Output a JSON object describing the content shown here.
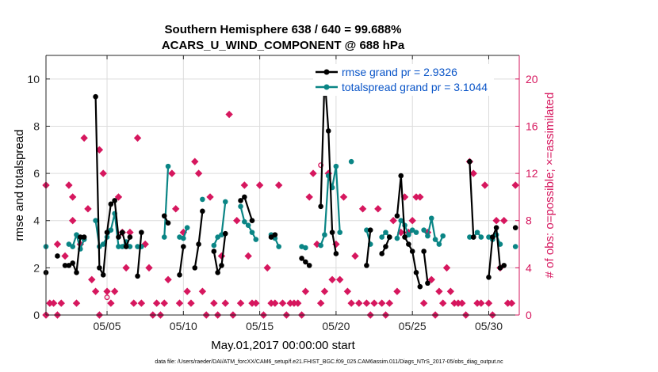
{
  "chart_data": {
    "type": "line",
    "title": "Southern Hemisphere 638 / 640 = 99.688%",
    "subtitle": "ACARS_U_WIND_COMPONENT @ 688 hPa",
    "xlabel": "May.01,2017 00:00:00 start",
    "ylabel_left": "rmse and totalspread",
    "ylabel_right": "# of obs: o=possible; ×=assimilated",
    "xlim": [
      1,
      32
    ],
    "ylim_left": [
      0,
      11
    ],
    "ylim_right": [
      0,
      22
    ],
    "x_ticks": [
      5,
      10,
      15,
      20,
      25,
      30
    ],
    "x_tick_labels": [
      "05/05",
      "05/10",
      "05/15",
      "05/20",
      "05/25",
      "05/30"
    ],
    "y_ticks_left": [
      0,
      2,
      4,
      6,
      8,
      10
    ],
    "y_ticks_right": [
      0,
      4,
      8,
      12,
      16,
      20
    ],
    "grid": true,
    "legend_position": "top-right",
    "colors": {
      "rmse": "#000000",
      "totalspread": "#0a8585",
      "obs": "#d6175e",
      "legend_text": "#0a55c8",
      "right_axis": "#d6175e"
    },
    "series": [
      {
        "name": "rmse grand pr = 2.9326",
        "axis": "left",
        "segments": [
          [
            [
              1.0,
              1.8
            ]
          ],
          [
            [
              1.75,
              2.5
            ]
          ],
          [
            [
              2.25,
              2.1
            ],
            [
              2.5,
              2.1
            ],
            [
              2.75,
              2.2
            ],
            [
              3.0,
              1.8
            ],
            [
              3.25,
              3.3
            ],
            [
              3.5,
              3.3
            ]
          ],
          [
            [
              4.25,
              9.25
            ],
            [
              4.5,
              2.0
            ],
            [
              4.75,
              1.7
            ],
            [
              5.0,
              3.5
            ],
            [
              5.25,
              4.7
            ],
            [
              5.5,
              4.85
            ],
            [
              5.75,
              3.3
            ],
            [
              6.0,
              3.5
            ],
            [
              6.25,
              2.9
            ],
            [
              6.5,
              3.3
            ]
          ],
          [
            [
              7.0,
              1.65
            ],
            [
              7.25,
              3.5
            ]
          ],
          [
            [
              8.75,
              4.2
            ],
            [
              9.0,
              3.9
            ]
          ],
          [
            [
              9.75,
              1.7
            ],
            [
              10.0,
              2.9
            ]
          ],
          [
            [
              10.75,
              2.0
            ],
            [
              11.0,
              3.0
            ],
            [
              11.25,
              4.4
            ]
          ],
          [
            [
              12.0,
              2.7
            ],
            [
              12.25,
              1.8
            ],
            [
              12.5,
              2.1
            ],
            [
              12.75,
              3.45
            ]
          ],
          [
            [
              13.75,
              4.85
            ],
            [
              14.0,
              5.0
            ],
            [
              14.5,
              4.0
            ]
          ],
          [
            [
              15.75,
              3.3
            ],
            [
              16.0,
              3.4
            ]
          ],
          [
            [
              17.75,
              2.4
            ],
            [
              18.0,
              2.25
            ],
            [
              18.25,
              2.1
            ]
          ],
          [
            [
              19.0,
              4.6
            ],
            [
              19.25,
              10.1
            ],
            [
              19.5,
              7.8
            ],
            [
              19.75,
              3.5
            ],
            [
              20.0,
              2.6
            ]
          ],
          [
            [
              22.0,
              2.1
            ],
            [
              22.25,
              3.6
            ]
          ],
          [
            [
              23.0,
              2.6
            ],
            [
              23.25,
              2.9
            ],
            [
              23.5,
              3.3
            ]
          ],
          [
            [
              24.0,
              4.2
            ],
            [
              24.25,
              5.9
            ],
            [
              24.5,
              3.3
            ],
            [
              24.75,
              3.0
            ],
            [
              25.0,
              2.7
            ],
            [
              25.25,
              1.8
            ],
            [
              25.5,
              1.2
            ]
          ],
          [
            [
              25.75,
              2.7
            ],
            [
              26.0,
              1.35
            ]
          ],
          [
            [
              28.75,
              6.5
            ],
            [
              29.0,
              3.3
            ]
          ],
          [
            [
              30.0,
              1.6
            ],
            [
              30.25,
              3.3
            ],
            [
              30.5,
              3.7
            ],
            [
              30.75,
              2.0
            ],
            [
              31.0,
              2.1
            ]
          ],
          [
            [
              31.75,
              3.7
            ]
          ]
        ]
      },
      {
        "name": "totalspread grand pr = 3.1044",
        "axis": "left",
        "segments": [
          [
            [
              1.0,
              2.9
            ]
          ],
          [
            [
              2.5,
              3.0
            ],
            [
              2.75,
              2.9
            ],
            [
              3.0,
              3.4
            ],
            [
              3.25,
              2.8
            ],
            [
              3.5,
              3.2
            ]
          ],
          [
            [
              4.25,
              4.0
            ],
            [
              4.5,
              2.9
            ],
            [
              4.75,
              3.0
            ],
            [
              5.0,
              3.3
            ],
            [
              5.25,
              3.6
            ],
            [
              5.5,
              4.3
            ],
            [
              5.75,
              2.9
            ],
            [
              6.0,
              2.9
            ],
            [
              6.25,
              3.1
            ],
            [
              6.5,
              2.9
            ]
          ],
          [
            [
              7.0,
              2.9
            ],
            [
              7.25,
              2.9
            ]
          ],
          [
            [
              8.75,
              3.3
            ],
            [
              9.0,
              6.3
            ]
          ],
          [
            [
              9.75,
              3.3
            ],
            [
              10.0,
              3.25
            ],
            [
              10.25,
              3.7
            ]
          ],
          [
            [
              11.25,
              4.9
            ]
          ],
          [
            [
              12.0,
              2.95
            ],
            [
              12.25,
              3.3
            ],
            [
              12.5,
              3.4
            ],
            [
              12.75,
              4.8
            ]
          ],
          [
            [
              13.75,
              4.6
            ],
            [
              14.0,
              3.95
            ],
            [
              14.25,
              3.8
            ],
            [
              14.5,
              3.5
            ],
            [
              14.75,
              3.2
            ]
          ],
          [
            [
              15.75,
              3.4
            ],
            [
              16.0,
              3.25
            ],
            [
              16.25,
              2.9
            ]
          ],
          [
            [
              17.75,
              2.9
            ],
            [
              18.0,
              2.85
            ]
          ],
          [
            [
              19.0,
              2.95
            ],
            [
              19.25,
              3.4
            ],
            [
              19.5,
              5.9
            ],
            [
              19.75,
              5.4
            ],
            [
              20.0,
              6.3
            ],
            [
              20.25,
              3.5
            ]
          ],
          [
            [
              21.0,
              6.5
            ]
          ],
          [
            [
              22.0,
              3.6
            ],
            [
              22.25,
              3.0
            ]
          ],
          [
            [
              23.0,
              3.3
            ],
            [
              23.25,
              3.5
            ],
            [
              23.5,
              3.3
            ]
          ],
          [
            [
              24.0,
              3.25
            ],
            [
              24.25,
              4.0
            ],
            [
              24.5,
              3.8
            ],
            [
              24.75,
              3.4
            ],
            [
              25.0,
              3.6
            ],
            [
              25.25,
              3.5
            ]
          ],
          [
            [
              25.75,
              3.6
            ],
            [
              26.0,
              3.35
            ],
            [
              26.25,
              4.1
            ],
            [
              26.5,
              3.2
            ],
            [
              26.75,
              3.0
            ],
            [
              27.0,
              3.35
            ]
          ],
          [
            [
              28.75,
              3.3
            ],
            [
              29.0,
              3.3
            ],
            [
              29.25,
              3.5
            ],
            [
              29.5,
              3.3
            ]
          ],
          [
            [
              30.0,
              3.3
            ],
            [
              30.25,
              3.2
            ],
            [
              30.5,
              3.4
            ],
            [
              30.75,
              3.0
            ]
          ],
          [
            [
              31.75,
              2.9
            ]
          ]
        ]
      },
      {
        "name": "possible",
        "axis": "right",
        "marker": "o",
        "points": [
          [
            5.0,
            1.5
          ],
          [
            19.0,
            12.7
          ]
        ]
      },
      {
        "name": "assimilated",
        "axis": "right",
        "marker": "x",
        "points": [
          [
            1.0,
            11
          ],
          [
            1.0,
            0
          ],
          [
            1.25,
            1
          ],
          [
            1.5,
            1
          ],
          [
            1.75,
            0
          ],
          [
            1.75,
            6
          ],
          [
            2.0,
            1
          ],
          [
            2.25,
            5
          ],
          [
            2.5,
            11
          ],
          [
            2.75,
            10
          ],
          [
            2.75,
            8
          ],
          [
            3.0,
            1
          ],
          [
            3.25,
            6
          ],
          [
            3.5,
            15
          ],
          [
            3.75,
            9
          ],
          [
            4.0,
            3
          ],
          [
            4.25,
            2
          ],
          [
            4.5,
            14
          ],
          [
            4.5,
            0
          ],
          [
            4.75,
            12
          ],
          [
            5.0,
            2
          ],
          [
            5.25,
            1
          ],
          [
            5.5,
            2
          ],
          [
            5.75,
            10
          ],
          [
            6.0,
            7
          ],
          [
            6.25,
            4
          ],
          [
            6.5,
            7
          ],
          [
            6.75,
            1
          ],
          [
            7.0,
            15
          ],
          [
            7.25,
            1
          ],
          [
            7.5,
            6
          ],
          [
            7.75,
            4
          ],
          [
            8.0,
            0
          ],
          [
            8.25,
            1
          ],
          [
            8.5,
            0
          ],
          [
            8.75,
            1
          ],
          [
            9.0,
            3
          ],
          [
            9.25,
            12
          ],
          [
            9.5,
            9
          ],
          [
            9.75,
            1
          ],
          [
            10.0,
            7
          ],
          [
            10.25,
            2
          ],
          [
            10.5,
            1
          ],
          [
            10.75,
            13
          ],
          [
            11.0,
            12
          ],
          [
            11.25,
            2
          ],
          [
            11.5,
            0
          ],
          [
            11.75,
            10
          ],
          [
            12.0,
            1
          ],
          [
            12.25,
            0
          ],
          [
            12.5,
            5
          ],
          [
            12.75,
            1
          ],
          [
            13.0,
            17
          ],
          [
            13.25,
            0
          ],
          [
            13.5,
            8
          ],
          [
            13.75,
            1
          ],
          [
            14.0,
            11
          ],
          [
            14.25,
            5
          ],
          [
            14.5,
            1
          ],
          [
            14.75,
            1
          ],
          [
            15.0,
            11
          ],
          [
            15.25,
            0
          ],
          [
            15.5,
            4
          ],
          [
            15.75,
            1
          ],
          [
            16.0,
            1
          ],
          [
            16.25,
            11
          ],
          [
            16.5,
            1
          ],
          [
            16.75,
            0
          ],
          [
            17.0,
            1
          ],
          [
            17.25,
            1
          ],
          [
            17.5,
            1
          ],
          [
            17.75,
            0
          ],
          [
            18.0,
            2
          ],
          [
            18.25,
            10
          ],
          [
            18.5,
            12
          ],
          [
            18.75,
            6
          ],
          [
            19.0,
            1
          ],
          [
            19.25,
            2
          ],
          [
            19.5,
            12
          ],
          [
            19.75,
            3
          ],
          [
            20.0,
            6
          ],
          [
            20.25,
            3
          ],
          [
            20.5,
            10
          ],
          [
            20.75,
            2
          ],
          [
            21.0,
            1
          ],
          [
            21.25,
            5
          ],
          [
            21.5,
            1
          ],
          [
            21.75,
            9
          ],
          [
            22.0,
            1
          ],
          [
            22.25,
            0
          ],
          [
            22.5,
            1
          ],
          [
            22.75,
            9
          ],
          [
            23.0,
            1
          ],
          [
            23.25,
            0
          ],
          [
            23.5,
            1
          ],
          [
            23.75,
            8
          ],
          [
            24.0,
            2
          ],
          [
            24.25,
            7
          ],
          [
            24.5,
            10
          ],
          [
            24.75,
            7
          ],
          [
            25.0,
            8
          ],
          [
            25.25,
            10
          ],
          [
            25.5,
            10
          ],
          [
            25.75,
            1
          ],
          [
            26.0,
            7
          ],
          [
            26.25,
            3
          ],
          [
            26.5,
            0
          ],
          [
            26.75,
            2
          ],
          [
            27.0,
            1
          ],
          [
            27.25,
            4
          ],
          [
            27.5,
            2
          ],
          [
            27.75,
            1
          ],
          [
            28.0,
            1
          ],
          [
            28.25,
            1
          ],
          [
            28.5,
            0
          ],
          [
            28.75,
            13
          ],
          [
            29.0,
            12
          ],
          [
            29.25,
            1
          ],
          [
            29.5,
            1
          ],
          [
            29.75,
            11
          ],
          [
            30.0,
            1
          ],
          [
            30.25,
            0
          ],
          [
            30.5,
            8
          ],
          [
            30.75,
            4
          ],
          [
            31.0,
            8
          ],
          [
            31.25,
            1
          ],
          [
            31.5,
            1
          ],
          [
            31.75,
            11
          ]
        ]
      }
    ]
  },
  "footer": {
    "data_file": "data file: /Users/raeder/DAI/ATM_forcXX/CAM6_setup/f.e21.FHIST_BGC.f09_025.CAM6assim.011/Diags_NTrS_2017-05/obs_diag_output.nc"
  }
}
